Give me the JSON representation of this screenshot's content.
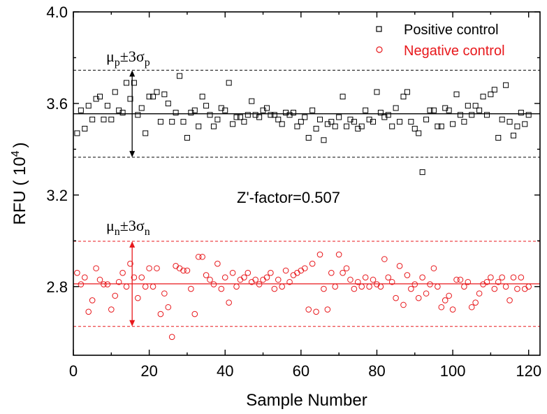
{
  "chart_data": {
    "type": "scatter",
    "xlabel": "Sample Number",
    "ylabel": "RFU ( 10",
    "ylabel_sup": "4",
    "ylabel_end": ")",
    "xlim": [
      0,
      123
    ],
    "ylim": [
      2.5,
      4.0
    ],
    "xticks": [
      0,
      20,
      40,
      60,
      80,
      100,
      120
    ],
    "yticks": [
      2.8,
      3.2,
      3.6,
      4.0
    ],
    "xtick_labels": [
      "0",
      "20",
      "40",
      "60",
      "80",
      "100",
      "120"
    ],
    "ytick_labels": [
      "2.8",
      "3.2",
      "3.6",
      "4.0"
    ],
    "annotation": "Z'-factor=0.507",
    "legend_position": "top-right",
    "series": [
      {
        "name": "Positive control",
        "color": "#000000",
        "marker": "square",
        "mean": 3.555,
        "mean_plus_3sd": 3.745,
        "mean_minus_3sd": 3.365,
        "band_label_main": "μ",
        "band_label_sub": "p",
        "band_label_mid": "±3σ",
        "band_label_sub2": "p",
        "x": [
          1,
          2,
          3,
          4,
          5,
          6,
          7,
          8,
          9,
          10,
          11,
          12,
          13,
          14,
          15,
          16,
          17,
          18,
          19,
          20,
          21,
          22,
          23,
          24,
          25,
          26,
          27,
          28,
          29,
          30,
          31,
          32,
          33,
          34,
          35,
          36,
          37,
          38,
          39,
          40,
          41,
          42,
          43,
          44,
          45,
          46,
          47,
          48,
          49,
          50,
          51,
          52,
          53,
          54,
          55,
          56,
          57,
          58,
          59,
          60,
          61,
          62,
          63,
          64,
          65,
          66,
          67,
          68,
          69,
          70,
          71,
          72,
          73,
          74,
          75,
          76,
          77,
          78,
          79,
          80,
          81,
          82,
          83,
          84,
          85,
          86,
          87,
          88,
          89,
          90,
          91,
          92,
          93,
          94,
          95,
          96,
          97,
          98,
          99,
          100,
          101,
          102,
          103,
          104,
          105,
          106,
          107,
          108,
          109,
          110,
          111,
          112,
          113,
          114,
          115,
          116,
          117,
          118,
          119,
          120
        ],
        "values": [
          3.47,
          3.57,
          3.49,
          3.59,
          3.53,
          3.62,
          3.63,
          3.53,
          3.59,
          3.53,
          3.65,
          3.57,
          3.56,
          3.69,
          3.62,
          3.69,
          3.55,
          3.58,
          3.47,
          3.63,
          3.63,
          3.65,
          3.52,
          3.64,
          3.6,
          3.52,
          3.56,
          3.72,
          3.52,
          3.45,
          3.56,
          3.57,
          3.5,
          3.63,
          3.59,
          3.55,
          3.5,
          3.53,
          3.58,
          3.57,
          3.69,
          3.51,
          3.54,
          3.54,
          3.52,
          3.55,
          3.61,
          3.55,
          3.54,
          3.57,
          3.58,
          3.55,
          3.55,
          3.53,
          3.51,
          3.56,
          3.55,
          3.56,
          3.5,
          3.52,
          3.54,
          3.45,
          3.57,
          3.49,
          3.53,
          3.44,
          3.51,
          3.52,
          3.5,
          3.54,
          3.63,
          3.5,
          3.53,
          3.52,
          3.49,
          3.5,
          3.57,
          3.53,
          3.52,
          3.65,
          3.56,
          3.54,
          3.55,
          3.5,
          3.58,
          3.52,
          3.63,
          3.65,
          3.52,
          3.49,
          3.47,
          3.3,
          3.53,
          3.57,
          3.57,
          3.5,
          3.5,
          3.58,
          3.57,
          3.51,
          3.64,
          3.55,
          3.52,
          3.59,
          3.55,
          3.59,
          3.57,
          3.63,
          3.55,
          3.64,
          3.66,
          3.45,
          3.53,
          3.68,
          3.52,
          3.46,
          3.5,
          3.56,
          3.51,
          3.55
        ]
      },
      {
        "name": "Negative control",
        "color": "#e8181c",
        "marker": "circle",
        "mean": 2.812,
        "mean_plus_3sd": 2.998,
        "mean_minus_3sd": 2.626,
        "band_label_main": "μ",
        "band_label_sub": "n",
        "band_label_mid": "±3σ",
        "band_label_sub2": "n",
        "x": [
          1,
          2,
          3,
          4,
          5,
          6,
          7,
          8,
          9,
          10,
          11,
          12,
          13,
          14,
          15,
          16,
          17,
          18,
          19,
          20,
          21,
          22,
          23,
          24,
          25,
          26,
          27,
          28,
          29,
          30,
          31,
          32,
          33,
          34,
          35,
          36,
          37,
          38,
          39,
          40,
          41,
          42,
          43,
          44,
          45,
          46,
          47,
          48,
          49,
          50,
          51,
          52,
          53,
          54,
          55,
          56,
          57,
          58,
          59,
          60,
          61,
          62,
          63,
          64,
          65,
          66,
          67,
          68,
          69,
          70,
          71,
          72,
          73,
          74,
          75,
          76,
          77,
          78,
          79,
          80,
          81,
          82,
          83,
          84,
          85,
          86,
          87,
          88,
          89,
          90,
          91,
          92,
          93,
          94,
          95,
          96,
          97,
          98,
          99,
          100,
          101,
          102,
          103,
          104,
          105,
          106,
          107,
          108,
          109,
          110,
          111,
          112,
          113,
          114,
          115,
          116,
          117,
          118,
          119,
          120
        ],
        "values": [
          2.86,
          2.81,
          2.84,
          2.69,
          2.74,
          2.88,
          2.83,
          2.81,
          2.81,
          2.7,
          2.76,
          2.82,
          2.86,
          2.8,
          2.9,
          2.84,
          2.75,
          2.84,
          2.8,
          2.88,
          2.8,
          2.88,
          2.68,
          2.77,
          2.71,
          2.58,
          2.89,
          2.88,
          2.87,
          2.87,
          2.79,
          2.68,
          2.93,
          2.93,
          2.85,
          2.83,
          2.81,
          2.9,
          2.79,
          2.84,
          2.73,
          2.86,
          2.8,
          2.83,
          2.84,
          2.86,
          2.82,
          2.83,
          2.81,
          2.83,
          2.84,
          2.86,
          2.79,
          2.83,
          2.8,
          2.87,
          2.82,
          2.85,
          2.86,
          2.87,
          2.88,
          2.7,
          2.9,
          2.69,
          2.94,
          2.79,
          2.7,
          2.86,
          2.8,
          2.94,
          2.86,
          2.88,
          2.83,
          2.79,
          2.82,
          2.8,
          2.84,
          2.8,
          2.83,
          2.81,
          2.8,
          2.92,
          2.84,
          2.82,
          2.75,
          2.89,
          2.72,
          2.85,
          2.79,
          2.81,
          2.75,
          2.84,
          2.77,
          2.81,
          2.88,
          2.8,
          2.71,
          2.74,
          2.76,
          2.7,
          2.83,
          2.83,
          2.8,
          2.82,
          2.71,
          2.73,
          2.77,
          2.81,
          2.82,
          2.84,
          2.79,
          2.82,
          2.84,
          2.8,
          2.74,
          2.84,
          2.79,
          2.84,
          2.79,
          2.8
        ]
      }
    ]
  }
}
